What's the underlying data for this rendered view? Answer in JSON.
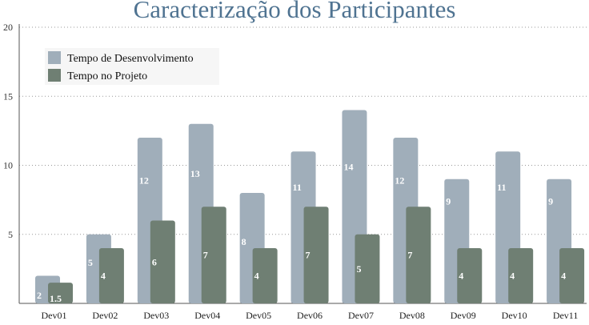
{
  "chart_data": {
    "type": "bar",
    "title": "Caracterização dos Participantes",
    "xlabel": "",
    "ylabel": "",
    "ylim": [
      0,
      20
    ],
    "yticks": [
      5,
      10,
      15,
      20
    ],
    "grid": true,
    "legend_position": "top-left",
    "categories": [
      "Dev01",
      "Dev02",
      "Dev03",
      "Dev04",
      "Dev05",
      "Dev06",
      "Dev07",
      "Dev08",
      "Dev09",
      "Dev10",
      "Dev11"
    ],
    "series": [
      {
        "name": "Tempo de Desenvolvimento",
        "color": "#a0aeba",
        "values": [
          2,
          5,
          12,
          13,
          8,
          11,
          14,
          12,
          9,
          11,
          9
        ]
      },
      {
        "name": "Tempo no Projeto",
        "color": "#6f7f73",
        "values": [
          1.5,
          4,
          6,
          7,
          4,
          7,
          5,
          7,
          4,
          4,
          4
        ]
      }
    ]
  }
}
